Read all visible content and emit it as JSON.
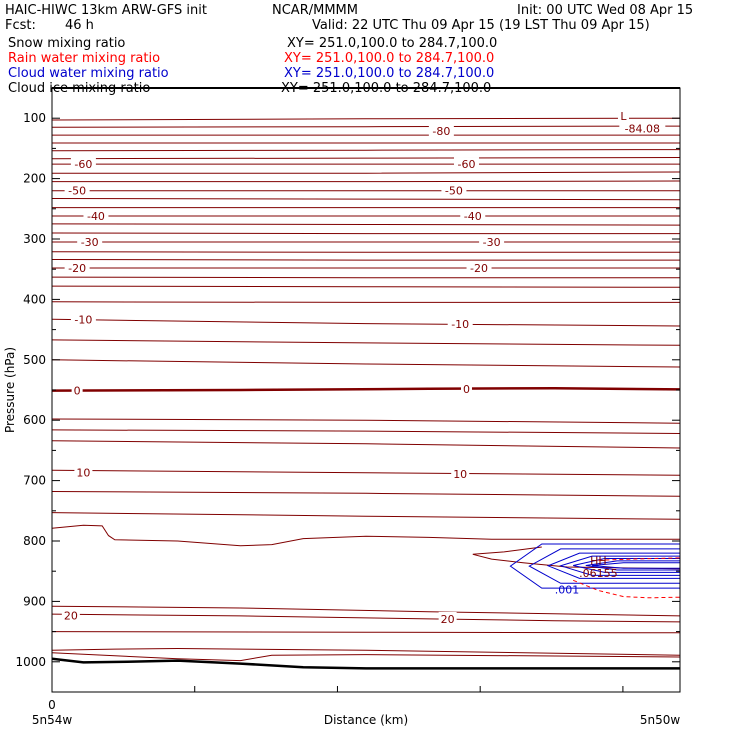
{
  "header": {
    "model": "HAIC-HIWC 13km ARW-GFS init",
    "org": "NCAR/MMMM",
    "init": "Init: 00 UTC Wed 08 Apr 15",
    "fcst_label": "Fcst:",
    "fcst_value": "46 h",
    "valid": "Valid: 22 UTC Thu 09 Apr 15 (19 LST Thu 09 Apr 15)"
  },
  "fields": [
    {
      "name": "Snow mixing ratio",
      "xy": "XY= 251.0,100.0 to 284.7,100.0",
      "color": "#000000"
    },
    {
      "name": "Rain water mixing ratio",
      "xy": "XY= 251.0,100.0 to 284.7,100.0",
      "color": "#ff0000"
    },
    {
      "name": "Cloud water mixing ratio",
      "xy": "XY= 251.0,100.0 to 284.7,100.0",
      "color": "#0000cc"
    },
    {
      "name": "Cloud ice mixing ratio",
      "xy": "XY= 251.0,100.0 to 284.7,100.0",
      "color": "#000000"
    }
  ],
  "chart_data": {
    "type": "line",
    "title": "",
    "xlabel": "Distance (km)",
    "ylabel": "Pressure (hPa)",
    "x_ticks": [
      "0"
    ],
    "x_endpoints": [
      "5n54w",
      "5n50w"
    ],
    "y_ticks": [
      100,
      200,
      300,
      400,
      500,
      600,
      700,
      800,
      900,
      1000
    ],
    "ylim": [
      50,
      1050
    ],
    "y_axis_inverted": true,
    "grid": false,
    "colors": {
      "temperature": "#800000",
      "cloud_water": "#0000cc",
      "rain": "#ff0000",
      "terrain": "#000000"
    },
    "isotherm_labels": [
      {
        "text": "-80",
        "x": 0.62,
        "p": 121
      },
      {
        "text": "-84.08",
        "x": 0.94,
        "p": 117
      },
      {
        "text": "L",
        "x": 0.91,
        "p": 96
      },
      {
        "text": "-60",
        "x": 0.05,
        "p": 176
      },
      {
        "text": "-60",
        "x": 0.66,
        "p": 176
      },
      {
        "text": "-50",
        "x": 0.04,
        "p": 220
      },
      {
        "text": "-50",
        "x": 0.64,
        "p": 220
      },
      {
        "text": "-40",
        "x": 0.07,
        "p": 262
      },
      {
        "text": "-40",
        "x": 0.67,
        "p": 262
      },
      {
        "text": "-30",
        "x": 0.06,
        "p": 305
      },
      {
        "text": "-30",
        "x": 0.7,
        "p": 305
      },
      {
        "text": "-20",
        "x": 0.04,
        "p": 348
      },
      {
        "text": "-20",
        "x": 0.68,
        "p": 348
      },
      {
        "text": "-10",
        "x": 0.05,
        "p": 433
      },
      {
        "text": "-10",
        "x": 0.65,
        "p": 441
      },
      {
        "text": "0",
        "x": 0.04,
        "p": 551
      },
      {
        "text": "0",
        "x": 0.66,
        "p": 548
      },
      {
        "text": "10",
        "x": 0.05,
        "p": 687
      },
      {
        "text": "10",
        "x": 0.65,
        "p": 689
      },
      {
        "text": "20",
        "x": 0.03,
        "p": 923
      },
      {
        "text": "20",
        "x": 0.63,
        "p": 929
      }
    ],
    "cloud_labels": [
      {
        "text": "HH",
        "x": 0.87,
        "p": 832,
        "color": "#800000"
      },
      {
        "text": ".06155",
        "x": 0.87,
        "p": 853,
        "color": "#800000"
      },
      {
        "text": ".001",
        "x": 0.82,
        "p": 880,
        "color": "#0000cc"
      }
    ]
  }
}
